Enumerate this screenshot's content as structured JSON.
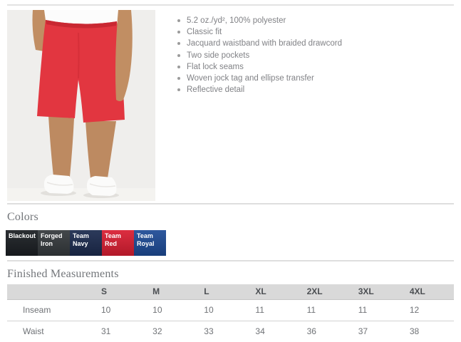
{
  "product": {
    "photo_alt": "Model wearing red athletic shorts with white t-shirt and white sneakers",
    "features": [
      "5.2 oz./yd², 100% polyester",
      "Classic fit",
      "Jacquard waistband with braided drawcord",
      "Two side pockets",
      "Flat lock seams",
      "Woven jock tag and ellipse transfer",
      "Reflective detail"
    ]
  },
  "colors_section": {
    "title": "Colors",
    "swatches": [
      {
        "name": "Blackout",
        "hex": "#1b1f23"
      },
      {
        "name": "Forged Iron",
        "hex": "#353a3d"
      },
      {
        "name": "Team Navy",
        "hex": "#1c2b4e"
      },
      {
        "name": "Team Red",
        "hex": "#d91e32"
      },
      {
        "name": "Team Royal",
        "hex": "#1e4b96"
      }
    ]
  },
  "measurements_section": {
    "title": "Finished Measurements",
    "size_columns": [
      "S",
      "M",
      "L",
      "XL",
      "2XL",
      "3XL",
      "4XL"
    ],
    "rows": [
      {
        "label": "Inseam",
        "values": [
          "10",
          "10",
          "10",
          "11",
          "11",
          "11",
          "12"
        ]
      },
      {
        "label": "Waist",
        "values": [
          "31",
          "32",
          "33",
          "34",
          "36",
          "37",
          "38"
        ]
      }
    ]
  }
}
